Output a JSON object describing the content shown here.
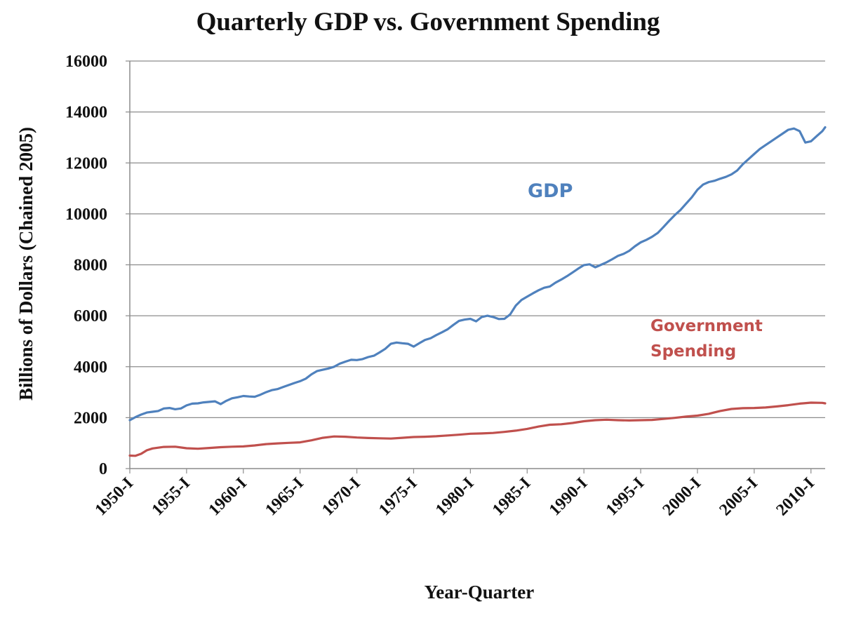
{
  "chart_data": {
    "type": "line",
    "title": "Quarterly GDP vs. Government Spending",
    "xlabel": "Year-Quarter",
    "ylabel": "Billions of Dollars (Chained 2005)",
    "ylim": [
      0,
      16000
    ],
    "yticks": [
      "0",
      "2000",
      "4000",
      "6000",
      "8000",
      "10000",
      "12000",
      "14000",
      "16000"
    ],
    "x_start_year": 1950,
    "x_end_year": 2011.25,
    "x_tick_labels": [
      "1950-I",
      "1955-I",
      "1960-I",
      "1965-I",
      "1970-I",
      "1975-I",
      "1980-I",
      "1985-I",
      "1990-I",
      "1995-I",
      "2000-I",
      "2005-I",
      "2010-I"
    ],
    "grid": "horizontal",
    "series": [
      {
        "name": "GDP",
        "color": "#4F81BD",
        "label_lines": [
          "GDP"
        ],
        "x": [
          1950,
          1950.5,
          1951,
          1951.5,
          1952,
          1952.5,
          1953,
          1953.5,
          1954,
          1954.5,
          1955,
          1955.5,
          1956,
          1956.5,
          1957,
          1957.5,
          1958,
          1958.5,
          1959,
          1959.5,
          1960,
          1960.5,
          1961,
          1961.5,
          1962,
          1962.5,
          1963,
          1963.5,
          1964,
          1964.5,
          1965,
          1965.5,
          1966,
          1966.5,
          1967,
          1967.5,
          1968,
          1968.5,
          1969,
          1969.5,
          1970,
          1970.5,
          1971,
          1971.5,
          1972,
          1972.5,
          1973,
          1973.5,
          1974,
          1974.5,
          1975,
          1975.5,
          1976,
          1976.5,
          1977,
          1977.5,
          1978,
          1978.5,
          1979,
          1979.5,
          1980,
          1980.5,
          1981,
          1981.5,
          1982,
          1982.5,
          1983,
          1983.5,
          1984,
          1984.5,
          1985,
          1985.5,
          1986,
          1986.5,
          1987,
          1987.5,
          1988,
          1988.5,
          1989,
          1989.5,
          1990,
          1990.5,
          1991,
          1991.5,
          1992,
          1992.5,
          1993,
          1993.5,
          1994,
          1994.5,
          1995,
          1995.5,
          1996,
          1996.5,
          1997,
          1997.5,
          1998,
          1998.5,
          1999,
          1999.5,
          2000,
          2000.5,
          2001,
          2001.5,
          2002,
          2002.5,
          2003,
          2003.5,
          2004,
          2004.5,
          2005,
          2005.5,
          2006,
          2006.5,
          2007,
          2007.5,
          2008,
          2008.5,
          2009,
          2009.5,
          2010,
          2010.5,
          2011,
          2011.25
        ],
        "values": [
          1900,
          2020,
          2120,
          2200,
          2230,
          2260,
          2360,
          2380,
          2330,
          2360,
          2480,
          2550,
          2560,
          2600,
          2620,
          2640,
          2530,
          2660,
          2760,
          2800,
          2850,
          2830,
          2820,
          2900,
          3000,
          3080,
          3120,
          3200,
          3280,
          3360,
          3430,
          3530,
          3700,
          3830,
          3880,
          3930,
          4000,
          4120,
          4200,
          4270,
          4260,
          4300,
          4380,
          4430,
          4560,
          4700,
          4900,
          4950,
          4920,
          4900,
          4790,
          4920,
          5050,
          5120,
          5240,
          5350,
          5470,
          5640,
          5800,
          5850,
          5880,
          5780,
          5950,
          6000,
          5950,
          5870,
          5880,
          6050,
          6400,
          6620,
          6750,
          6880,
          7000,
          7100,
          7150,
          7300,
          7420,
          7550,
          7700,
          7850,
          7990,
          8020,
          7900,
          8000,
          8100,
          8220,
          8350,
          8430,
          8550,
          8730,
          8880,
          8980,
          9100,
          9250,
          9480,
          9720,
          9950,
          10150,
          10400,
          10650,
          10950,
          11150,
          11250,
          11300,
          11380,
          11450,
          11550,
          11700,
          11950,
          12150,
          12350,
          12550,
          12700,
          12850,
          13000,
          13150,
          13300,
          13350,
          13250,
          12800,
          12850,
          13050,
          13250,
          13400
        ]
      },
      {
        "name": "Government Spending",
        "color": "#C0504D",
        "label_lines": [
          "Government",
          "Spending"
        ],
        "x": [
          1950,
          1950.5,
          1951,
          1951.5,
          1952,
          1953,
          1954,
          1955,
          1956,
          1957,
          1958,
          1959,
          1960,
          1961,
          1962,
          1963,
          1964,
          1965,
          1966,
          1967,
          1968,
          1969,
          1970,
          1971,
          1972,
          1973,
          1974,
          1975,
          1976,
          1977,
          1978,
          1979,
          1980,
          1981,
          1982,
          1983,
          1984,
          1985,
          1986,
          1987,
          1988,
          1989,
          1990,
          1991,
          1992,
          1993,
          1994,
          1995,
          1996,
          1997,
          1998,
          1999,
          2000,
          2001,
          2002,
          2003,
          2004,
          2005,
          2006,
          2007,
          2008,
          2009,
          2010,
          2011,
          2011.25
        ],
        "values": [
          510,
          500,
          580,
          720,
          790,
          850,
          860,
          800,
          780,
          810,
          840,
          860,
          870,
          910,
          960,
          990,
          1010,
          1030,
          1110,
          1210,
          1260,
          1250,
          1220,
          1200,
          1190,
          1180,
          1210,
          1240,
          1250,
          1270,
          1300,
          1330,
          1370,
          1380,
          1400,
          1440,
          1490,
          1560,
          1650,
          1720,
          1740,
          1790,
          1860,
          1900,
          1920,
          1900,
          1890,
          1900,
          1910,
          1950,
          1990,
          2040,
          2080,
          2150,
          2260,
          2340,
          2370,
          2380,
          2400,
          2440,
          2490,
          2550,
          2590,
          2580,
          2560
        ]
      }
    ]
  }
}
